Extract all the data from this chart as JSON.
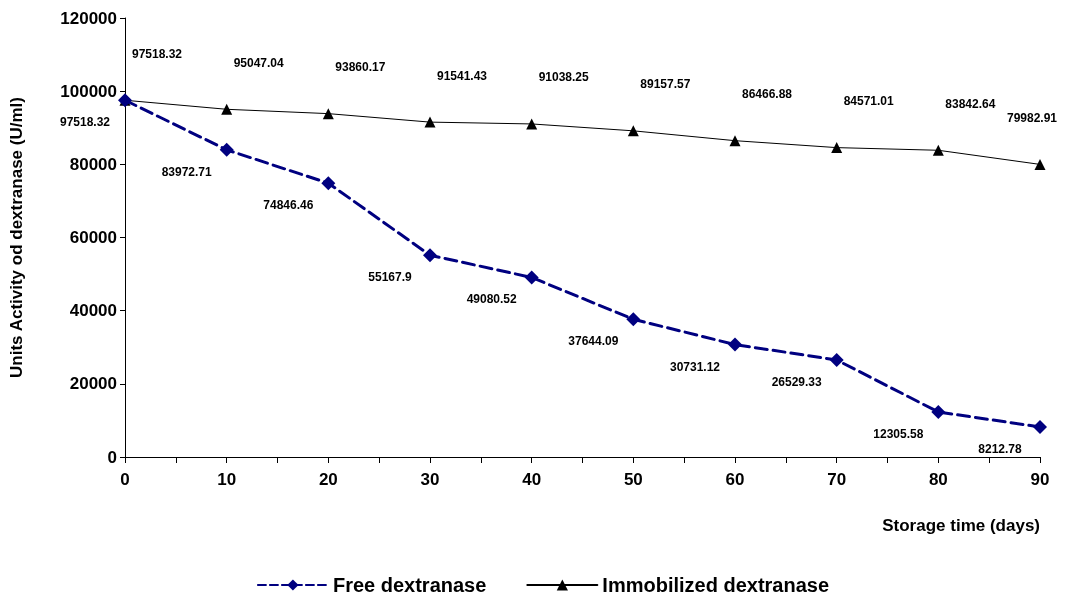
{
  "chart_data": {
    "type": "line",
    "xlabel": "Storage time (days)",
    "ylabel": "Units Activity od dextranase (U/ml)",
    "x": [
      0,
      10,
      20,
      30,
      40,
      50,
      60,
      70,
      80,
      90
    ],
    "series": [
      {
        "name": "Free dextranase",
        "color": "#000080",
        "marker": "diamond",
        "line_style": "dashed",
        "values": [
          97518.32,
          83972.71,
          74846.46,
          55167.9,
          49080.52,
          37644.09,
          30731.12,
          26529.33,
          12305.58,
          8212.78
        ]
      },
      {
        "name": "Immobilized dextranase",
        "color": "#000000",
        "marker": "triangle",
        "line_style": "solid",
        "values": [
          97518.32,
          95047.04,
          93860.17,
          91541.43,
          91038.25,
          89157.57,
          86466.88,
          84571.01,
          83842.64,
          79982.91
        ]
      }
    ],
    "xlim": [
      0,
      90
    ],
    "xticks": [
      0,
      {
        "value": 5,
        "label": null
      },
      10,
      {
        "value": 15,
        "label": null
      },
      20,
      {
        "value": 25,
        "label": null
      },
      30,
      {
        "value": 35,
        "label": null
      },
      40,
      {
        "value": 45,
        "label": null
      },
      50,
      {
        "value": 55,
        "label": null
      },
      60,
      {
        "value": 65,
        "label": null
      },
      70,
      {
        "value": 75,
        "label": null
      },
      80,
      {
        "value": 85,
        "label": null
      },
      90
    ],
    "ylim": [
      0,
      120000
    ],
    "yticks": [
      0,
      20000,
      40000,
      60000,
      80000,
      100000,
      120000
    ],
    "grid": false,
    "legend": "bottom",
    "data_labels": true
  }
}
